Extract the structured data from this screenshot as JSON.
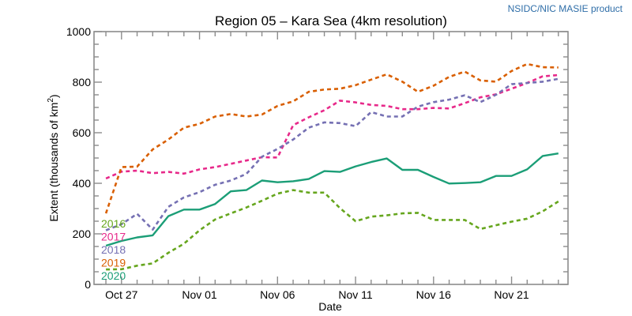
{
  "chart_data": {
    "type": "line",
    "title": "Region 05 – Kara Sea (4km resolution)",
    "credit": "NSIDC/NIC MASIE product",
    "xlabel": "Date",
    "ylabel": "Extent (thousands of km²)",
    "ylabel_parts": {
      "main": "Extent (thousands of km",
      "sup": "2",
      "end": ")"
    },
    "ylim": [
      0,
      1000
    ],
    "yticks": [
      0,
      200,
      400,
      600,
      800,
      1000
    ],
    "yminor_step": 50,
    "x_day_range": [
      "Oct 25",
      "Nov 25"
    ],
    "xticks": [
      {
        "label": "Oct 27",
        "day": 2
      },
      {
        "label": "Nov 01",
        "day": 7
      },
      {
        "label": "Nov 06",
        "day": 12
      },
      {
        "label": "Nov 11",
        "day": 17
      },
      {
        "label": "Nov 16",
        "day": 22
      },
      {
        "label": "Nov 21",
        "day": 27
      }
    ],
    "x_axis_span_days": [
      0,
      30
    ],
    "x": [
      "Oct 26",
      "Oct 27",
      "Oct 28",
      "Oct 29",
      "Oct 30",
      "Oct 31",
      "Nov 01",
      "Nov 02",
      "Nov 03",
      "Nov 04",
      "Nov 05",
      "Nov 06",
      "Nov 07",
      "Nov 08",
      "Nov 09",
      "Nov 10",
      "Nov 11",
      "Nov 12",
      "Nov 13",
      "Nov 14",
      "Nov 15",
      "Nov 16",
      "Nov 17",
      "Nov 18",
      "Nov 19",
      "Nov 20",
      "Nov 21",
      "Nov 22",
      "Nov 23",
      "Nov 24"
    ],
    "grid": false,
    "legend_position": "bottom-left",
    "series": [
      {
        "name": "2016",
        "color": "#66a61e",
        "style": "dashed",
        "values": [
          59,
          60,
          74,
          83,
          125,
          161,
          214,
          257,
          281,
          304,
          331,
          359,
          373,
          363,
          363,
          302,
          250,
          268,
          273,
          281,
          283,
          255,
          255,
          255,
          219,
          234,
          248,
          260,
          289,
          328
        ]
      },
      {
        "name": "2017",
        "color": "#e7298a",
        "style": "dashed",
        "values": [
          419,
          446,
          450,
          440,
          445,
          438,
          455,
          464,
          477,
          490,
          503,
          502,
          630,
          661,
          689,
          727,
          720,
          710,
          706,
          693,
          693,
          698,
          696,
          717,
          740,
          752,
          774,
          797,
          823,
          828
        ]
      },
      {
        "name": "2018",
        "color": "#7570b3",
        "style": "dashed",
        "values": [
          214,
          238,
          279,
          217,
          307,
          344,
          365,
          394,
          411,
          437,
          505,
          536,
          573,
          620,
          641,
          638,
          626,
          682,
          664,
          664,
          703,
          721,
          731,
          748,
          721,
          750,
          792,
          797,
          802,
          813
        ]
      },
      {
        "name": "2019",
        "color": "#d95f02",
        "style": "dashed",
        "values": [
          281,
          464,
          466,
          534,
          573,
          620,
          635,
          664,
          674,
          664,
          672,
          706,
          724,
          762,
          771,
          774,
          788,
          810,
          831,
          802,
          762,
          786,
          821,
          842,
          807,
          802,
          844,
          872,
          859,
          858
        ]
      },
      {
        "name": "2020",
        "color": "#1b9e77",
        "style": "solid",
        "values": [
          153,
          172,
          186,
          194,
          270,
          296,
          296,
          318,
          368,
          373,
          411,
          404,
          408,
          417,
          448,
          445,
          467,
          484,
          498,
          453,
          453,
          425,
          399,
          401,
          404,
          429,
          429,
          455,
          508,
          518
        ]
      }
    ]
  }
}
